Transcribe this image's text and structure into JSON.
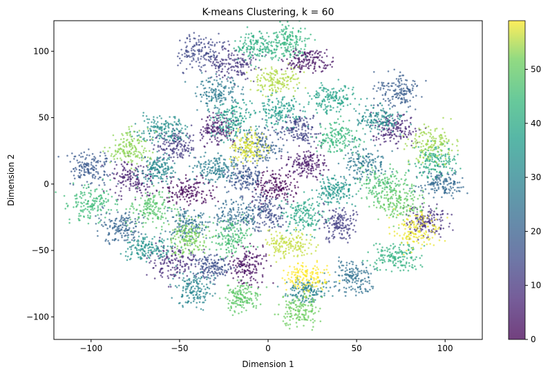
{
  "chart_data": {
    "type": "scatter",
    "title": "K-means Clustering, k = 60",
    "xlabel": "Dimension 1",
    "ylabel": "Dimension 2",
    "xlim": [
      -121,
      121
    ],
    "ylim": [
      -117,
      123
    ],
    "xticks": [
      -100,
      -50,
      0,
      50,
      100
    ],
    "yticks": [
      -100,
      -50,
      0,
      50,
      100
    ],
    "grid": false,
    "colormap": "viridis",
    "alpha": 0.7,
    "colorbar": {
      "range": [
        0,
        59
      ],
      "ticks": [
        0,
        10,
        20,
        30,
        40,
        50
      ]
    },
    "clusters": [
      {
        "label": 0,
        "center": [
          4,
          -2
        ]
      },
      {
        "label": 1,
        "center": [
          -46,
          -5
        ]
      },
      {
        "label": 2,
        "center": [
          -12,
          -62
        ]
      },
      {
        "label": 3,
        "center": [
          23,
          93
        ]
      },
      {
        "label": 4,
        "center": [
          22,
          15
        ]
      },
      {
        "label": 5,
        "center": [
          -28,
          42
        ]
      },
      {
        "label": 6,
        "center": [
          -77,
          3
        ]
      },
      {
        "label": 7,
        "center": [
          71,
          42
        ]
      },
      {
        "label": 8,
        "center": [
          -53,
          -59
        ]
      },
      {
        "label": 9,
        "center": [
          90,
          -28
        ]
      },
      {
        "label": 10,
        "center": [
          -20,
          90
        ]
      },
      {
        "label": 11,
        "center": [
          -52,
          30
        ]
      },
      {
        "label": 12,
        "center": [
          40,
          -30
        ]
      },
      {
        "label": 13,
        "center": [
          18,
          42
        ]
      },
      {
        "label": 14,
        "center": [
          -38,
          100
        ]
      },
      {
        "label": 15,
        "center": [
          -1,
          -21
        ]
      },
      {
        "label": 16,
        "center": [
          -32,
          -62
        ]
      },
      {
        "label": 17,
        "center": [
          -13,
          5
        ]
      },
      {
        "label": 18,
        "center": [
          -100,
          12
        ]
      },
      {
        "label": 19,
        "center": [
          73,
          70
        ]
      },
      {
        "label": 20,
        "center": [
          -4,
          30
        ]
      },
      {
        "label": 21,
        "center": [
          -83,
          -32
        ]
      },
      {
        "label": 22,
        "center": [
          98,
          1
        ]
      },
      {
        "label": 23,
        "center": [
          -17,
          -24
        ]
      },
      {
        "label": 24,
        "center": [
          48,
          -70
        ]
      },
      {
        "label": 25,
        "center": [
          -45,
          -30
        ]
      },
      {
        "label": 26,
        "center": [
          55,
          15
        ]
      },
      {
        "label": 27,
        "center": [
          -28,
          68
        ]
      },
      {
        "label": 28,
        "center": [
          -30,
          12
        ]
      },
      {
        "label": 29,
        "center": [
          22,
          -80
        ]
      },
      {
        "label": 30,
        "center": [
          -42,
          -78
        ]
      },
      {
        "label": 31,
        "center": [
          -62,
          12
        ]
      },
      {
        "label": 32,
        "center": [
          62,
          48
        ]
      },
      {
        "label": 33,
        "center": [
          -60,
          42
        ]
      },
      {
        "label": 34,
        "center": [
          -68,
          -48
        ]
      },
      {
        "label": 35,
        "center": [
          38,
          -5
        ]
      },
      {
        "label": 36,
        "center": [
          6,
          55
        ]
      },
      {
        "label": 37,
        "center": [
          -20,
          48
        ]
      },
      {
        "label": 38,
        "center": [
          36,
          65
        ]
      },
      {
        "label": 39,
        "center": [
          20,
          -23
        ]
      },
      {
        "label": 40,
        "center": [
          95,
          18
        ]
      },
      {
        "label": 41,
        "center": [
          -6,
          103
        ]
      },
      {
        "label": 42,
        "center": [
          72,
          -55
        ]
      },
      {
        "label": 43,
        "center": [
          12,
          108
        ]
      },
      {
        "label": 44,
        "center": [
          40,
          35
        ]
      },
      {
        "label": 45,
        "center": [
          -100,
          -15
        ]
      },
      {
        "label": 46,
        "center": [
          -20,
          -40
        ]
      },
      {
        "label": 47,
        "center": [
          65,
          0
        ]
      },
      {
        "label": 48,
        "center": [
          -65,
          -18
        ]
      },
      {
        "label": 49,
        "center": [
          -15,
          -85
        ]
      },
      {
        "label": 50,
        "center": [
          75,
          -15
        ]
      },
      {
        "label": 51,
        "center": [
          18,
          -95
        ]
      },
      {
        "label": 52,
        "center": [
          -45,
          -40
        ]
      },
      {
        "label": 53,
        "center": [
          -78,
          27
        ]
      },
      {
        "label": 54,
        "center": [
          92,
          30
        ]
      },
      {
        "label": 55,
        "center": [
          5,
          78
        ]
      },
      {
        "label": 56,
        "center": [
          12,
          -45
        ]
      },
      {
        "label": 57,
        "center": [
          -10,
          28
        ]
      },
      {
        "label": 58,
        "center": [
          83,
          -35
        ]
      },
      {
        "label": 59,
        "center": [
          22,
          -70
        ]
      }
    ]
  }
}
